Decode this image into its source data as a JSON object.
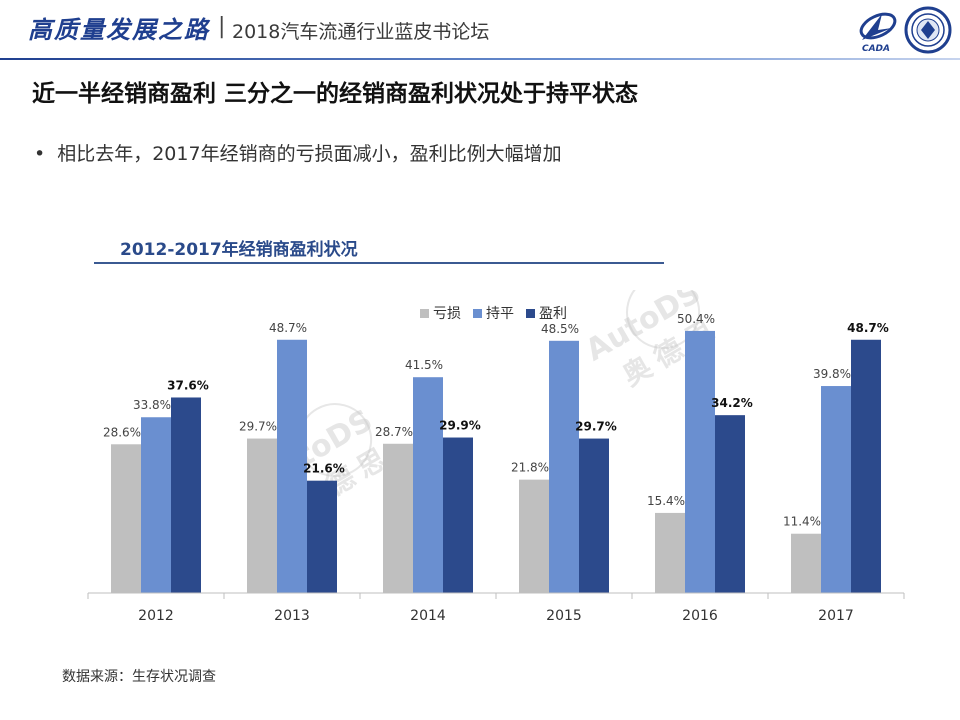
{
  "header": {
    "slogan": "高质量发展之路",
    "separator": "|",
    "forum": "2018汽车流通行业蓝皮书论坛",
    "logo_left_text": "CADA"
  },
  "page_title": "近一半经销商盈利 三分之一的经销商盈利状况处于持平状态",
  "bullet": {
    "dot": "•",
    "text": "相比去年，2017年经销商的亏损面减小，盈利比例大幅增加"
  },
  "chart_title": "2012-2017年经销商盈利状况",
  "source": "数据来源：生存状况调查",
  "watermark": {
    "latin": "AutoDS",
    "cjk": "奥德思"
  },
  "chart_data": {
    "type": "bar",
    "categories": [
      "2012",
      "2013",
      "2014",
      "2015",
      "2016",
      "2017"
    ],
    "series": [
      {
        "name": "亏损",
        "values": [
          28.6,
          29.7,
          28.7,
          21.8,
          15.4,
          11.4
        ],
        "color": "#bfbfbf"
      },
      {
        "name": "持平",
        "values": [
          33.8,
          48.7,
          41.5,
          48.5,
          50.4,
          39.8
        ],
        "color": "#6a8fd0"
      },
      {
        "name": "盈利",
        "values": [
          37.6,
          21.6,
          29.9,
          29.7,
          34.2,
          48.7
        ],
        "color": "#2c4a8c"
      }
    ],
    "value_suffix": "%",
    "legend_position": "top",
    "grid": false,
    "ylim": [
      0,
      55
    ]
  }
}
